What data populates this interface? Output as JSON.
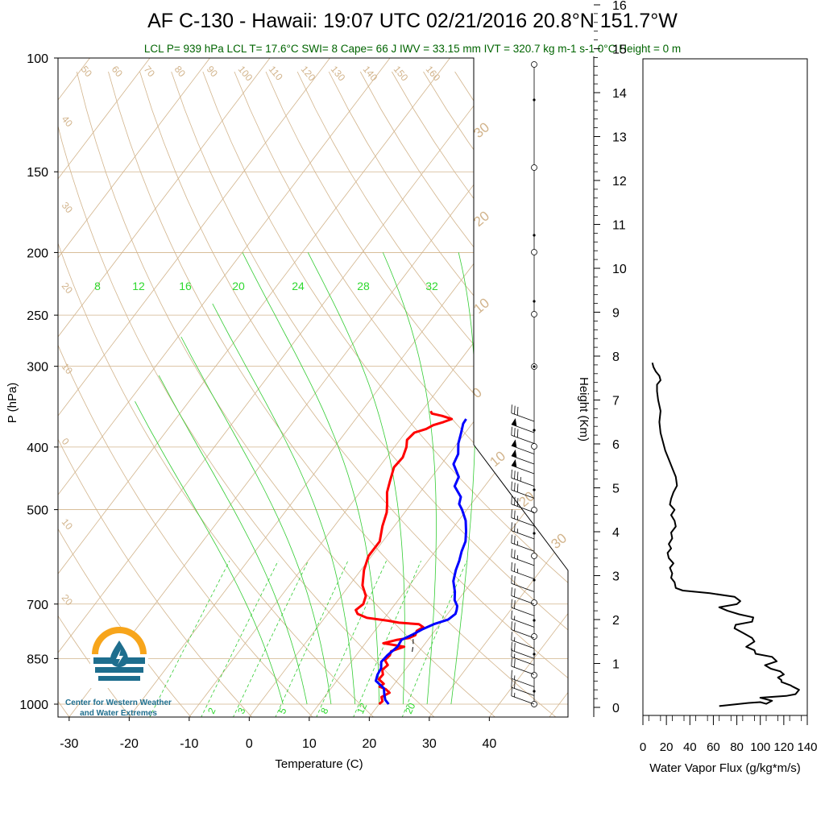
{
  "title": "AF C-130 - Hawaii: 19:07 UTC 02/21/2016  20.8°N 151.7°W",
  "subtitle": "LCL P= 939 hPa  LCL T= 17.6°C  SWI= 8  Cape= 66 J  IWV = 33.15 mm  IVT = 320.7 kg m-1 s-1  0°C Height = 0 m",
  "logo_text": [
    "Center for Western Weather",
    "and Water Extremes"
  ],
  "colors": {
    "temperature": "#ff0000",
    "dewpoint": "#0000ff",
    "mixing_ratio": "#33cc33",
    "adiabats": "#d2b48c",
    "subtitle": "#006400"
  },
  "chart_data": [
    {
      "type": "line",
      "name": "skew-t",
      "xlabel": "Temperature (C)",
      "ylabel": "P (hPa)",
      "y2label": "Height (Km)",
      "x_ticks": [
        -30,
        -20,
        -10,
        0,
        10,
        20,
        30,
        40
      ],
      "y_ticks": [
        100,
        150,
        200,
        250,
        300,
        400,
        500,
        700,
        850,
        1000
      ],
      "height_ticks": [
        0,
        1,
        2,
        3,
        4,
        5,
        6,
        7,
        8,
        9,
        10,
        11,
        12,
        13,
        14,
        15,
        16
      ],
      "top_isotherm_labels": [
        50,
        60,
        70,
        80,
        90,
        100,
        110,
        120,
        130,
        140,
        150,
        160
      ],
      "left_isotherm_labels": [
        40,
        30,
        20,
        10,
        0,
        10,
        20
      ],
      "right_isotherm_labels": [
        30,
        20,
        10,
        0,
        10,
        20,
        30
      ],
      "mixing_ratio_top_labels": [
        8,
        12,
        16,
        20,
        24,
        28,
        32
      ],
      "mixing_ratio_bottom_labels": [
        2,
        3,
        5,
        8,
        12,
        20
      ],
      "series": [
        {
          "name": "Temperature",
          "points": [
            [
              20.0,
              1000
            ],
            [
              20.2,
              990
            ],
            [
              19.5,
              975
            ],
            [
              20.3,
              960
            ],
            [
              19.2,
              948
            ],
            [
              17.9,
              940
            ],
            [
              18.2,
              930
            ],
            [
              16.8,
              915
            ],
            [
              16.9,
              900
            ],
            [
              16.2,
              885
            ],
            [
              16.5,
              870
            ],
            [
              15.4,
              855
            ],
            [
              15.6,
              840
            ],
            [
              15.3,
              828
            ],
            [
              16.9,
              815
            ],
            [
              13.0,
              805
            ],
            [
              14.9,
              795
            ],
            [
              16.6,
              790
            ],
            [
              17.3,
              782
            ],
            [
              17.0,
              770
            ],
            [
              17.6,
              760
            ],
            [
              16.5,
              752
            ],
            [
              13.0,
              748
            ],
            [
              11.0,
              743
            ],
            [
              7.0,
              735
            ],
            [
              5.0,
              725
            ],
            [
              4.2,
              715
            ],
            [
              4.7,
              700
            ],
            [
              4.1,
              680
            ],
            [
              2.2,
              655
            ],
            [
              0.5,
              620
            ],
            [
              -0.5,
              590
            ],
            [
              -0.5,
              560
            ],
            [
              -2.0,
              530
            ],
            [
              -3.0,
              505
            ],
            [
              -4.0,
              490
            ],
            [
              -5.5,
              470
            ],
            [
              -6.5,
              450
            ],
            [
              -7.5,
              430
            ],
            [
              -7.3,
              415
            ],
            [
              -8.0,
              400
            ],
            [
              -8.8,
              390
            ],
            [
              -8.5,
              380
            ],
            [
              -7.0,
              375
            ],
            [
              -6.3,
              370
            ],
            [
              -5.0,
              366
            ],
            [
              -4.0,
              362
            ],
            [
              -6.0,
              358
            ],
            [
              -8.0,
              355
            ],
            [
              -8.5,
              352
            ]
          ]
        },
        {
          "name": "Dewpoint",
          "points": [
            [
              21.6,
              1000
            ],
            [
              20.5,
              985
            ],
            [
              19.6,
              965
            ],
            [
              18.8,
              945
            ],
            [
              16.5,
              920
            ],
            [
              16.0,
              900
            ],
            [
              15.8,
              880
            ],
            [
              15.0,
              860
            ],
            [
              15.2,
              840
            ],
            [
              15.8,
              815
            ],
            [
              15.6,
              795
            ],
            [
              16.8,
              780
            ],
            [
              17.8,
              765
            ],
            [
              19.0,
              752
            ],
            [
              20.8,
              740
            ],
            [
              21.3,
              725
            ],
            [
              21.0,
              715
            ],
            [
              20.6,
              705
            ],
            [
              19.4,
              690
            ],
            [
              18.4,
              670
            ],
            [
              16.8,
              645
            ],
            [
              15.8,
              620
            ],
            [
              15.2,
              600
            ],
            [
              14.4,
              580
            ],
            [
              13.8,
              560
            ],
            [
              12.6,
              540
            ],
            [
              11.2,
              520
            ],
            [
              9.2,
              500
            ],
            [
              8.0,
              490
            ],
            [
              7.4,
              478
            ],
            [
              5.0,
              460
            ],
            [
              4.5,
              445
            ],
            [
              2.0,
              425
            ],
            [
              1.5,
              410
            ],
            [
              0.2,
              395
            ],
            [
              -0.7,
              380
            ],
            [
              -1.5,
              368
            ],
            [
              -1.6,
              362
            ]
          ]
        },
        {
          "name": "Lifted parcel",
          "points": [
            [
              18.9,
              830
            ],
            [
              18.2,
              810
            ],
            [
              17.3,
              790
            ],
            [
              16.9,
              780
            ]
          ]
        }
      ],
      "wind_barbs": [
        {
          "pressure": 1000,
          "speed_kt": 15
        },
        {
          "pressure": 970,
          "speed_kt": 20
        },
        {
          "pressure": 940,
          "speed_kt": 15
        },
        {
          "pressure": 900,
          "speed_kt": 20
        },
        {
          "pressure": 870,
          "speed_kt": 15
        },
        {
          "pressure": 850,
          "speed_kt": 20
        },
        {
          "pressure": 820,
          "speed_kt": 15
        },
        {
          "pressure": 790,
          "speed_kt": 20
        },
        {
          "pressure": 760,
          "speed_kt": 15
        },
        {
          "pressure": 730,
          "speed_kt": 20
        },
        {
          "pressure": 700,
          "speed_kt": 20
        },
        {
          "pressure": 670,
          "speed_kt": 20
        },
        {
          "pressure": 640,
          "speed_kt": 25
        },
        {
          "pressure": 610,
          "speed_kt": 25
        },
        {
          "pressure": 580,
          "speed_kt": 25
        },
        {
          "pressure": 555,
          "speed_kt": 25
        },
        {
          "pressure": 530,
          "speed_kt": 25
        },
        {
          "pressure": 505,
          "speed_kt": 30
        },
        {
          "pressure": 480,
          "speed_kt": 30
        },
        {
          "pressure": 460,
          "speed_kt": 35
        },
        {
          "pressure": 440,
          "speed_kt": 50
        },
        {
          "pressure": 425,
          "speed_kt": 50
        },
        {
          "pressure": 410,
          "speed_kt": 50
        },
        {
          "pressure": 395,
          "speed_kt": 30
        },
        {
          "pressure": 380,
          "speed_kt": 50
        },
        {
          "pressure": 365,
          "speed_kt": 30
        }
      ]
    },
    {
      "type": "line",
      "name": "water-vapor-flux",
      "xlabel": "Water Vapor Flux (g/kg*m/s)",
      "x_ticks": [
        0,
        20,
        40,
        60,
        80,
        100,
        120,
        140
      ],
      "xlim": [
        0,
        140
      ],
      "ylim": [
        0,
        16.5
      ],
      "series": [
        {
          "name": "Water Vapor Flux",
          "points": [
            [
              65,
              0.03
            ],
            [
              90,
              0.1
            ],
            [
              100,
              0.12
            ],
            [
              105,
              0.08
            ],
            [
              110,
              0.15
            ],
            [
              100,
              0.22
            ],
            [
              122,
              0.26
            ],
            [
              130,
              0.3
            ],
            [
              133,
              0.4
            ],
            [
              127,
              0.48
            ],
            [
              126,
              0.5
            ],
            [
              118,
              0.58
            ],
            [
              118,
              0.62
            ],
            [
              115,
              0.68
            ],
            [
              120,
              0.75
            ],
            [
              117,
              0.82
            ],
            [
              109,
              0.88
            ],
            [
              104,
              0.96
            ],
            [
              114,
              1.05
            ],
            [
              110,
              1.15
            ],
            [
              96,
              1.22
            ],
            [
              95,
              1.3
            ],
            [
              88,
              1.38
            ],
            [
              95,
              1.5
            ],
            [
              93,
              1.58
            ],
            [
              85,
              1.7
            ],
            [
              78,
              1.8
            ],
            [
              79,
              1.88
            ],
            [
              93,
              1.95
            ],
            [
              94,
              2.05
            ],
            [
              82,
              2.12
            ],
            [
              72,
              2.2
            ],
            [
              65,
              2.28
            ],
            [
              80,
              2.35
            ],
            [
              83,
              2.42
            ],
            [
              78,
              2.52
            ],
            [
              57,
              2.6
            ],
            [
              34,
              2.66
            ],
            [
              28,
              2.72
            ],
            [
              27,
              2.85
            ],
            [
              24,
              2.95
            ],
            [
              25,
              3.05
            ],
            [
              23,
              3.18
            ],
            [
              26,
              3.28
            ],
            [
              22,
              3.4
            ],
            [
              21,
              3.52
            ],
            [
              24,
              3.62
            ],
            [
              22,
              3.72
            ],
            [
              25,
              3.85
            ],
            [
              24,
              3.98
            ],
            [
              28,
              4.12
            ],
            [
              27,
              4.25
            ],
            [
              24,
              4.38
            ],
            [
              27,
              4.5
            ],
            [
              23,
              4.62
            ],
            [
              24,
              4.75
            ],
            [
              26,
              4.9
            ],
            [
              29,
              5.05
            ],
            [
              28,
              5.25
            ],
            [
              25,
              5.45
            ],
            [
              22,
              5.65
            ],
            [
              19,
              5.85
            ],
            [
              17,
              6.05
            ],
            [
              15,
              6.25
            ],
            [
              14,
              6.5
            ],
            [
              15,
              6.75
            ],
            [
              13,
              7.0
            ],
            [
              12,
              7.2
            ],
            [
              12,
              7.35
            ],
            [
              15,
              7.45
            ],
            [
              14,
              7.55
            ],
            [
              11,
              7.65
            ],
            [
              9,
              7.75
            ],
            [
              8,
              7.85
            ]
          ]
        }
      ]
    }
  ]
}
